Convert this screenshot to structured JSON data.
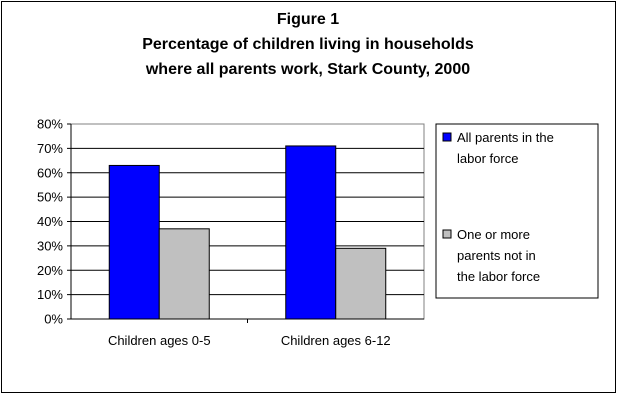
{
  "chart_data": {
    "type": "bar",
    "title_lines": [
      "Figure 1",
      "Percentage of children living in households",
      "where all parents work, Stark County, 2000"
    ],
    "categories": [
      "Children ages 0-5",
      "Children ages 6-12"
    ],
    "series": [
      {
        "name_lines": [
          "All parents in the",
          "labor force"
        ],
        "values": [
          63,
          71
        ],
        "color": "#0000FF"
      },
      {
        "name_lines": [
          "One or more",
          "parents not in",
          "the labor force"
        ],
        "values": [
          37,
          29
        ],
        "color": "#C0C0C0"
      }
    ],
    "y_ticks": [
      "0%",
      "10%",
      "20%",
      "30%",
      "40%",
      "50%",
      "60%",
      "70%",
      "80%"
    ],
    "ylim": [
      0,
      80
    ],
    "grid": true,
    "legend_position": "right"
  }
}
